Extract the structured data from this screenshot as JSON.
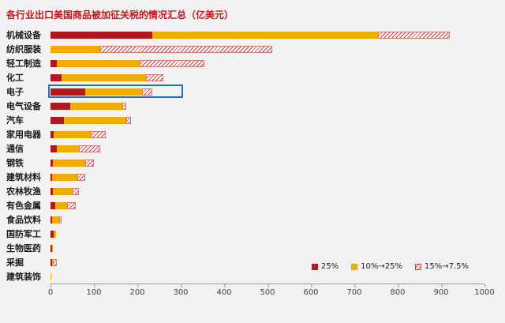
{
  "title": "各行业出口美国商品被加征关税的情况汇总（亿美元）",
  "colors": {
    "red": "#b0191d",
    "yellow": "#f0ad00",
    "hatch": "#c8403a",
    "highlight": "#1d6fc2",
    "title": "#c3161c"
  },
  "legend": [
    {
      "label": "25%",
      "swatch": "red"
    },
    {
      "label": "10%→25%",
      "swatch": "yellow"
    },
    {
      "label": "15%→7.5%",
      "swatch": "hatch"
    }
  ],
  "chart_data": {
    "type": "bar",
    "orientation": "horizontal",
    "title": "各行业出口美国商品被加征关税的情况汇总（亿美元）",
    "xlabel": "",
    "ylabel": "",
    "xlim": [
      0,
      1000
    ],
    "xticks": [
      0,
      100,
      200,
      300,
      400,
      500,
      600,
      700,
      800,
      900,
      1000
    ],
    "grid": false,
    "legend_position": "bottom-right",
    "highlight_category": "电子",
    "highlight_extent": 310,
    "categories": [
      "机械设备",
      "纺织服装",
      "轻工制造",
      "化工",
      "电子",
      "电气设备",
      "汽车",
      "家用电器",
      "通信",
      "钢铁",
      "建筑材料",
      "农林牧渔",
      "有色金属",
      "食品饮料",
      "国防军工",
      "生物医药",
      "采掘",
      "建筑装饰"
    ],
    "series": [
      {
        "name": "25%",
        "key": "25pct",
        "values": [
          235,
          0,
          15,
          25,
          80,
          45,
          30,
          8,
          15,
          5,
          4,
          5,
          10,
          4,
          8,
          3,
          3,
          0
        ]
      },
      {
        "name": "10%→25%",
        "key": "10-25pct",
        "values": [
          520,
          115,
          190,
          195,
          130,
          120,
          145,
          85,
          50,
          75,
          58,
          45,
          28,
          16,
          4,
          3,
          3,
          1
        ]
      },
      {
        "name": "15%→7.5%",
        "key": "15-7-5pct",
        "values": [
          165,
          395,
          150,
          40,
          25,
          10,
          10,
          35,
          50,
          20,
          18,
          15,
          20,
          6,
          0,
          0,
          8,
          0
        ]
      }
    ]
  }
}
